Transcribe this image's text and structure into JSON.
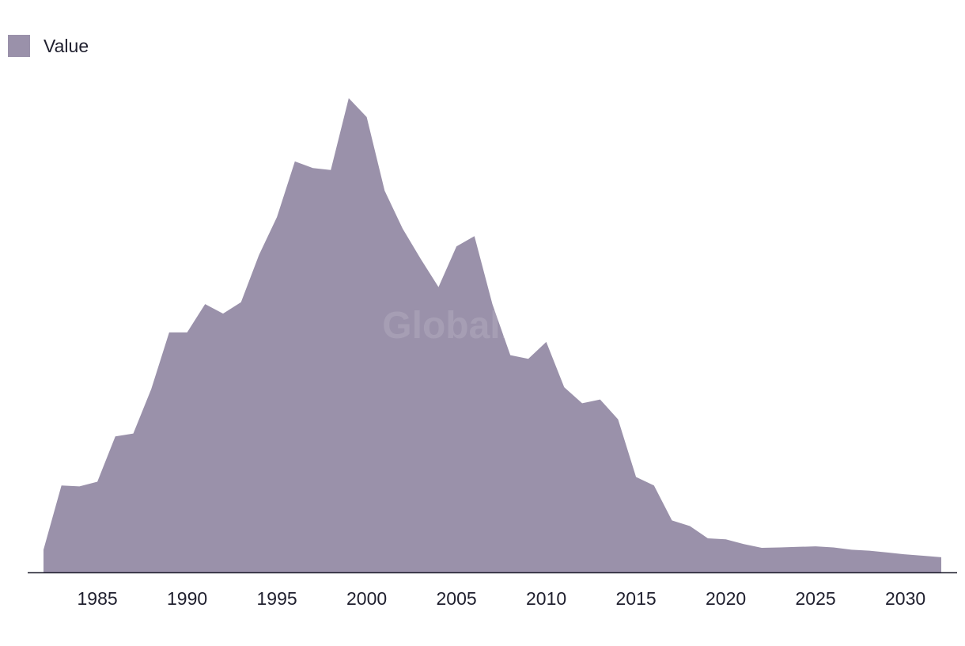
{
  "legend": {
    "label": "Value"
  },
  "watermark": "GlobalData",
  "colors": {
    "area": "#9a91aa",
    "axis": "#1f1f2e",
    "text": "#1f1f2e"
  },
  "chart_data": {
    "type": "area",
    "title": "",
    "xlabel": "",
    "ylabel": "",
    "legend_position": "top-left",
    "grid": false,
    "xlim": [
      1982,
      2032
    ],
    "ylim": [
      0,
      250
    ],
    "x_ticks": [
      1985,
      1990,
      1995,
      2000,
      2005,
      2010,
      2015,
      2020,
      2025,
      2030
    ],
    "series": [
      {
        "name": "Value",
        "x": [
          1982,
          1983,
          1984,
          1985,
          1986,
          1987,
          1988,
          1989,
          1990,
          1991,
          1992,
          1993,
          1994,
          1995,
          1996,
          1997,
          1998,
          1999,
          2000,
          2001,
          2002,
          2003,
          2004,
          2005,
          2006,
          2007,
          2008,
          2009,
          2010,
          2011,
          2012,
          2013,
          2014,
          2015,
          2016,
          2017,
          2018,
          2019,
          2020,
          2021,
          2022,
          2023,
          2024,
          2025,
          2026,
          2027,
          2028,
          2029,
          2030,
          2031,
          2032
        ],
        "values": [
          12,
          46,
          45.5,
          48,
          72,
          73.5,
          97,
          127,
          127,
          142,
          137,
          143,
          168,
          188,
          217.5,
          214,
          213,
          251,
          241,
          202,
          182,
          166,
          151,
          172.5,
          178,
          142,
          115,
          113,
          122,
          98,
          89.5,
          91.5,
          81,
          50.5,
          46,
          27.5,
          24.5,
          18,
          17.5,
          15,
          13,
          13.2,
          13.5,
          13.8,
          13.2,
          12,
          11.5,
          10.5,
          9.5,
          8.8,
          8
        ]
      }
    ]
  }
}
